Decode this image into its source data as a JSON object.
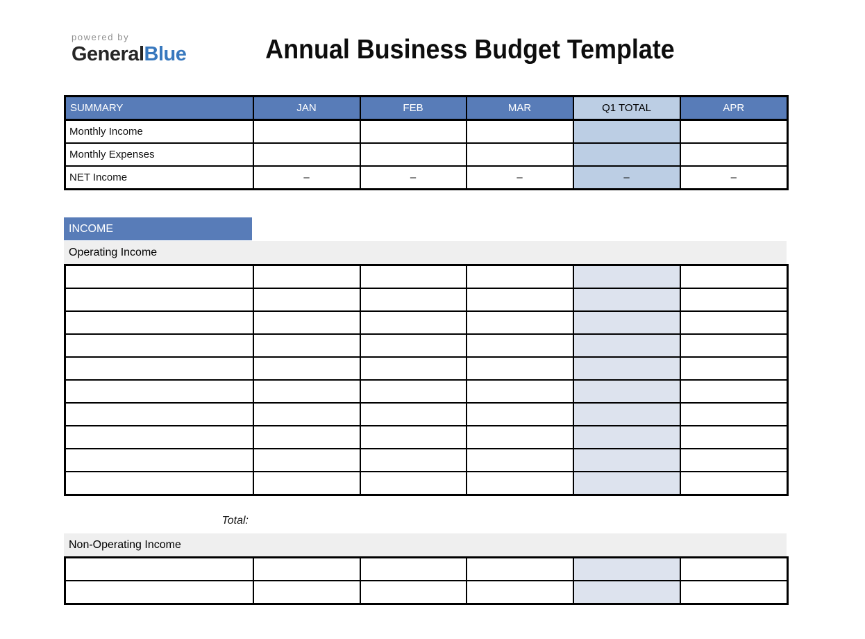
{
  "logo": {
    "powered_by": "powered by",
    "brand_part1": "General",
    "brand_part2": "Blue"
  },
  "title": "Annual Business Budget Template",
  "colors": {
    "header_blue": "#587CB8",
    "q1_header_blue": "#BCCEE4",
    "q1_grid_blue": "#DDE3EE",
    "section_row_gray": "#EFEFEF",
    "brand_blue": "#3878BE"
  },
  "summary_table": {
    "columns": [
      "SUMMARY",
      "JAN",
      "FEB",
      "MAR",
      "Q1 TOTAL",
      "APR"
    ],
    "q1_column_index": 4,
    "rows": [
      {
        "label": "Monthly Income",
        "values": [
          "",
          "",
          "",
          "",
          ""
        ]
      },
      {
        "label": "Monthly Expenses",
        "values": [
          "",
          "",
          "",
          "",
          ""
        ]
      },
      {
        "label": "NET Income",
        "values": [
          "–",
          "–",
          "–",
          "–",
          "–"
        ]
      }
    ]
  },
  "income_section": {
    "header": "INCOME",
    "operating": {
      "label": "Operating Income",
      "row_count": 10,
      "total_label": "Total:"
    },
    "non_operating": {
      "label": "Non-Operating Income",
      "row_count": 2
    }
  }
}
